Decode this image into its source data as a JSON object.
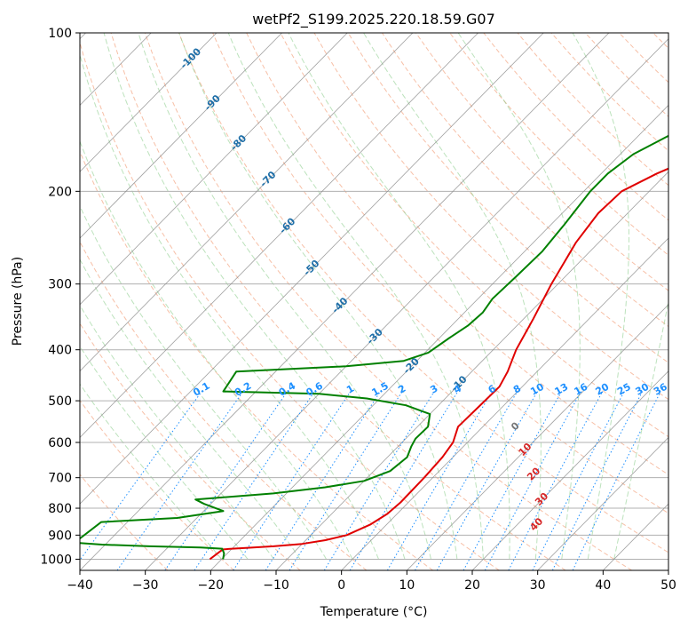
{
  "chart_data": {
    "type": "line",
    "title": "wetPf2_S199.2025.220.18.59.G07",
    "xlabel": "Temperature (°C)",
    "ylabel": "Pressure (hPa)",
    "xlim": [
      -40,
      50
    ],
    "ylim": [
      1050,
      100
    ],
    "y_scale": "log",
    "grid": true,
    "x_ticks": [
      "−40",
      "−30",
      "−20",
      "−10",
      "0",
      "10",
      "20",
      "30",
      "40",
      "50"
    ],
    "x_tick_values": [
      -40,
      -30,
      -20,
      -10,
      0,
      10,
      20,
      30,
      40,
      50
    ],
    "y_ticks": [
      "100",
      "200",
      "300",
      "400",
      "500",
      "600",
      "700",
      "800",
      "900",
      "1000"
    ],
    "y_tick_values": [
      100,
      200,
      300,
      400,
      500,
      600,
      700,
      800,
      900,
      1000
    ],
    "isotherm_labels": [
      "-100",
      "-90",
      "-80",
      "-70",
      "-60",
      "-50",
      "-40",
      "-30",
      "-20",
      "-10"
    ],
    "isotherm_label_values": [
      -100,
      -90,
      -80,
      -70,
      -60,
      -50,
      -40,
      -30,
      -20,
      -10
    ],
    "mixing_ratio_labels": [
      "0.1",
      "0.2",
      "0.4",
      "0.6",
      "1",
      "1.5",
      "2",
      "3",
      "4",
      "6",
      "8",
      "10",
      "13",
      "16",
      "20",
      "25",
      "30",
      "36"
    ],
    "mixing_ratio_values": [
      0.1,
      0.2,
      0.4,
      0.6,
      1,
      1.5,
      2,
      3,
      4,
      6,
      8,
      10,
      13,
      16,
      20,
      25,
      30,
      36
    ],
    "moist_labels": [
      "0",
      "10",
      "20",
      "30",
      "40"
    ],
    "moist_label_values": [
      0,
      10,
      20,
      30,
      40
    ],
    "colors": {
      "temperature": "#e00000",
      "dewpoint": "#008000",
      "isotherm_label": "#1f6fa8",
      "mixing_ratio": "#1e90ff",
      "moist_label": "#d62728",
      "dry_adiabat": "#f4a582",
      "moist_adiabat": "#8fce8f",
      "isotherm": "#888888",
      "grid": "#b0b0b0"
    },
    "series": [
      {
        "key": "temperature",
        "points": [
          [
            -21.8,
            1000
          ],
          [
            -21.4,
            965
          ],
          [
            -21.2,
            958
          ],
          [
            -20.5,
            956
          ],
          [
            -18.0,
            952
          ],
          [
            -14.0,
            945
          ],
          [
            -10.0,
            935
          ],
          [
            -7.0,
            920
          ],
          [
            -4.5,
            900
          ],
          [
            -2.5,
            860
          ],
          [
            -1.5,
            820
          ],
          [
            -1.2,
            780
          ],
          [
            -1.3,
            700
          ],
          [
            -1.6,
            640
          ],
          [
            -2.2,
            600
          ],
          [
            -3.8,
            560
          ],
          [
            -3.6,
            500
          ],
          [
            -3.5,
            470
          ],
          [
            -4.5,
            440
          ],
          [
            -6.5,
            400
          ],
          [
            -8.5,
            350
          ],
          [
            -11.0,
            300
          ],
          [
            -13.5,
            250
          ],
          [
            -14.5,
            220
          ],
          [
            -14.2,
            200
          ],
          [
            -11.5,
            185
          ],
          [
            -7.5,
            170
          ],
          [
            -5.0,
            155
          ],
          [
            -2.0,
            140
          ],
          [
            1.5,
            125
          ],
          [
            4.0,
            112
          ],
          [
            6.5,
            100
          ]
        ]
      },
      {
        "key": "dewpoint",
        "points": [
          [
            -19.8,
            1000
          ],
          [
            -20.5,
            975
          ],
          [
            -21.5,
            955
          ],
          [
            -25.0,
            950
          ],
          [
            -33.0,
            945
          ],
          [
            -40.5,
            938
          ],
          [
            -45.0,
            930
          ],
          [
            -44.0,
            850
          ],
          [
            -33.0,
            835
          ],
          [
            -27.0,
            810
          ],
          [
            -31.0,
            785
          ],
          [
            -33.0,
            770
          ],
          [
            -22.0,
            750
          ],
          [
            -15.0,
            730
          ],
          [
            -10.0,
            710
          ],
          [
            -7.5,
            680
          ],
          [
            -7.0,
            640
          ],
          [
            -8.0,
            610
          ],
          [
            -8.5,
            590
          ],
          [
            -8.4,
            560
          ],
          [
            -10.0,
            530
          ],
          [
            -15.0,
            510
          ],
          [
            -22.0,
            495
          ],
          [
            -30.0,
            485
          ],
          [
            -45.0,
            480
          ],
          [
            -46.0,
            440
          ],
          [
            -30.0,
            430
          ],
          [
            -22.0,
            420
          ],
          [
            -19.5,
            405
          ],
          [
            -18.5,
            380
          ],
          [
            -17.5,
            360
          ],
          [
            -17.2,
            340
          ],
          [
            -17.8,
            320
          ],
          [
            -17.5,
            290
          ],
          [
            -17.3,
            260
          ],
          [
            -18.0,
            230
          ],
          [
            -19.0,
            200
          ],
          [
            -19.0,
            185
          ],
          [
            -18.0,
            170
          ],
          [
            -15.0,
            155
          ],
          [
            -10.0,
            140
          ],
          [
            -5.0,
            120
          ],
          [
            1.0,
            100
          ]
        ]
      }
    ]
  }
}
